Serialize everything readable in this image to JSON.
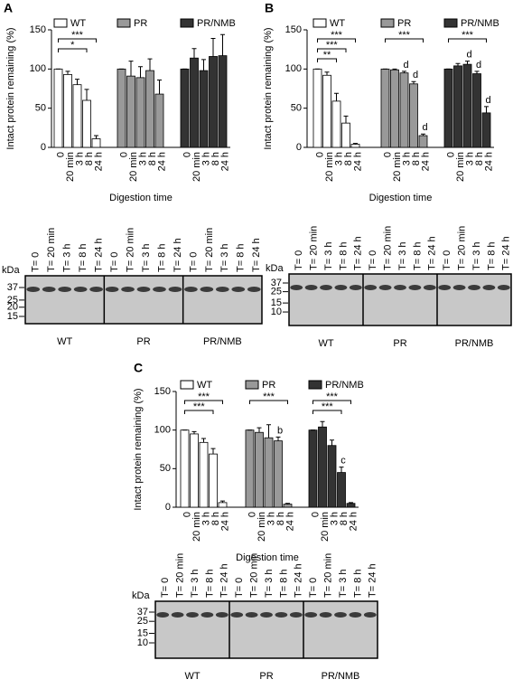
{
  "chart_data": [
    {
      "type": "bar",
      "panel": "A",
      "ylabel": "Intact protein remaining (%)",
      "xlabel": "Digestion time",
      "categories": [
        "0",
        "20 min",
        "3 h",
        "8 h",
        "24 h"
      ],
      "ylim": [
        0,
        150
      ],
      "yticks": [
        0,
        50,
        100,
        150
      ],
      "series": [
        {
          "name": "WT",
          "color": "#ffffff",
          "values": [
            100,
            93,
            80,
            60,
            11
          ],
          "errors": [
            0,
            4,
            7,
            14,
            4
          ]
        },
        {
          "name": "PR",
          "color": "#999999",
          "values": [
            100,
            91,
            89,
            98,
            68
          ],
          "errors": [
            0,
            19,
            14,
            15,
            18
          ]
        },
        {
          "name": "PR/NMB",
          "color": "#333333",
          "values": [
            100,
            114,
            98,
            116,
            117
          ],
          "errors": [
            0,
            12,
            14,
            23,
            27
          ]
        }
      ],
      "brackets": [
        {
          "label": "***",
          "series": 0,
          "from": 0,
          "to": 4
        },
        {
          "label": "*",
          "series": 0,
          "from": 0,
          "to": 3
        }
      ],
      "letters": [],
      "gel": {
        "unit": "kDa",
        "markers": [
          37,
          25,
          20,
          15
        ],
        "lanes": [
          "T= 0",
          "T= 20 min",
          "T= 3 h",
          "T= 8 h",
          "T= 24 h"
        ],
        "groups": [
          "WT",
          "PR",
          "PR/NMB"
        ]
      }
    },
    {
      "type": "bar",
      "panel": "B",
      "ylabel": "Intact protein remaining (%)",
      "xlabel": "Digestion time",
      "categories": [
        "0",
        "20 min",
        "3 h",
        "8 h",
        "24 h"
      ],
      "ylim": [
        0,
        150
      ],
      "yticks": [
        0,
        50,
        100,
        150
      ],
      "series": [
        {
          "name": "WT",
          "color": "#ffffff",
          "values": [
            100,
            92,
            59,
            31,
            4
          ],
          "errors": [
            0,
            4,
            10,
            9,
            1
          ]
        },
        {
          "name": "PR",
          "color": "#999999",
          "values": [
            100,
            99,
            95,
            81,
            15
          ],
          "errors": [
            0,
            1,
            2,
            3,
            2
          ]
        },
        {
          "name": "PR/NMB",
          "color": "#333333",
          "values": [
            100,
            104,
            106,
            94,
            44
          ],
          "errors": [
            0,
            3,
            4,
            3,
            8
          ]
        }
      ],
      "brackets": [
        {
          "label": "***",
          "series": 0,
          "from": 0,
          "to": 4
        },
        {
          "label": "***",
          "series": 0,
          "from": 0,
          "to": 3
        },
        {
          "label": "**",
          "series": 0,
          "from": 0,
          "to": 2
        },
        {
          "label": "***",
          "series": 1,
          "from": 0,
          "to": 4
        },
        {
          "label": "***",
          "series": 2,
          "from": 0,
          "to": 4
        }
      ],
      "letters": [
        {
          "label": "d",
          "series": 1,
          "category": 2
        },
        {
          "label": "d",
          "series": 1,
          "category": 3
        },
        {
          "label": "d",
          "series": 1,
          "category": 4
        },
        {
          "label": "d",
          "series": 2,
          "category": 2
        },
        {
          "label": "d",
          "series": 2,
          "category": 3
        },
        {
          "label": "d",
          "series": 2,
          "category": 4
        }
      ],
      "gel": {
        "unit": "kDa",
        "markers": [
          37,
          25,
          15,
          10
        ],
        "lanes": [
          "T= 0",
          "T= 20 min",
          "T= 3 h",
          "T= 8 h",
          "T= 24 h"
        ],
        "groups": [
          "WT",
          "PR",
          "PR/NMB"
        ]
      }
    },
    {
      "type": "bar",
      "panel": "C",
      "ylabel": "Intact protein remaining (%)",
      "xlabel": "Digestion time",
      "categories": [
        "0",
        "20 min",
        "3 h",
        "8 h",
        "24 h"
      ],
      "ylim": [
        0,
        150
      ],
      "yticks": [
        0,
        50,
        100,
        150
      ],
      "series": [
        {
          "name": "WT",
          "color": "#ffffff",
          "values": [
            100,
            95,
            84,
            69,
            6
          ],
          "errors": [
            0,
            3,
            5,
            7,
            2
          ]
        },
        {
          "name": "PR",
          "color": "#999999",
          "values": [
            100,
            97,
            90,
            86,
            4
          ],
          "errors": [
            0,
            6,
            17,
            5,
            1
          ]
        },
        {
          "name": "PR/NMB",
          "color": "#333333",
          "values": [
            100,
            104,
            80,
            45,
            5
          ],
          "errors": [
            0,
            7,
            7,
            7,
            1
          ]
        }
      ],
      "brackets": [
        {
          "label": "***",
          "series": 0,
          "from": 0,
          "to": 4
        },
        {
          "label": "***",
          "series": 0,
          "from": 0,
          "to": 3
        },
        {
          "label": "***",
          "series": 1,
          "from": 0,
          "to": 4
        },
        {
          "label": "***",
          "series": 2,
          "from": 0,
          "to": 4
        },
        {
          "label": "***",
          "series": 2,
          "from": 0,
          "to": 3
        }
      ],
      "letters": [
        {
          "label": "b",
          "series": 1,
          "category": 3
        },
        {
          "label": "c",
          "series": 2,
          "category": 3
        }
      ],
      "gel": {
        "unit": "kDa",
        "markers": [
          37,
          25,
          15,
          10
        ],
        "lanes": [
          "T= 0",
          "T= 20 min",
          "T= 3 h",
          "T= 8 h",
          "T= 24 h"
        ],
        "groups": [
          "WT",
          "PR",
          "PR/NMB"
        ]
      }
    }
  ]
}
